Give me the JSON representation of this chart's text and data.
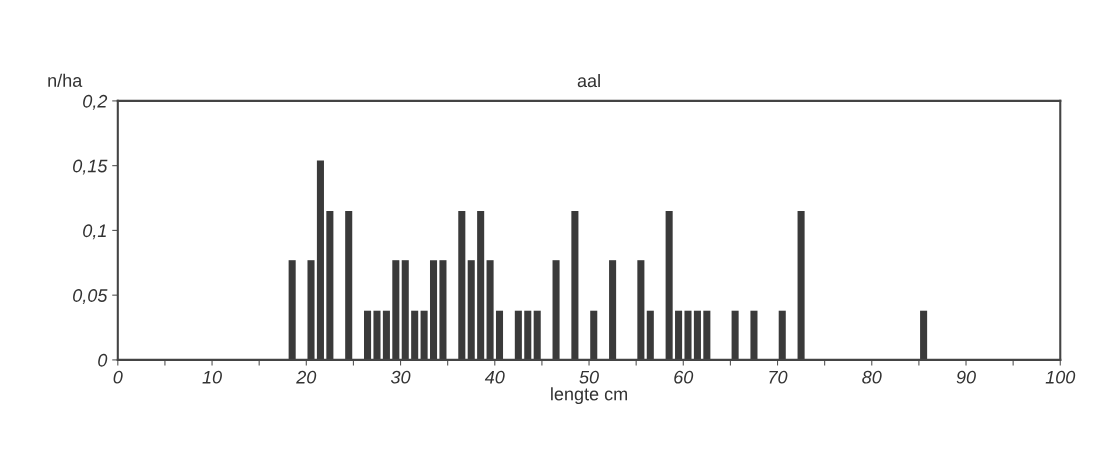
{
  "chart_data": {
    "type": "bar",
    "title": "aal",
    "xlabel": "lengte cm",
    "ylabel": "n/ha",
    "color": "#3a3a3a",
    "x": [
      18.5,
      20.5,
      21.5,
      22.5,
      24.5,
      26.5,
      27.5,
      28.5,
      29.5,
      30.5,
      31.5,
      32.5,
      33.5,
      34.5,
      36.5,
      37.5,
      38.5,
      39.5,
      40.5,
      42.5,
      43.5,
      44.5,
      46.5,
      48.5,
      50.5,
      52.5,
      55.5,
      56.5,
      58.5,
      59.5,
      60.5,
      61.5,
      62.5,
      65.5,
      67.5,
      70.5,
      72.5,
      85.5
    ],
    "values": [
      0.077,
      0.077,
      0.154,
      0.115,
      0.115,
      0.038,
      0.038,
      0.038,
      0.077,
      0.077,
      0.038,
      0.038,
      0.077,
      0.077,
      0.115,
      0.077,
      0.115,
      0.077,
      0.038,
      0.038,
      0.038,
      0.038,
      0.077,
      0.115,
      0.038,
      0.077,
      0.077,
      0.038,
      0.115,
      0.038,
      0.038,
      0.038,
      0.038,
      0.038,
      0.038,
      0.038,
      0.115,
      0.038
    ],
    "xlim": [
      0,
      100
    ],
    "ylim": [
      0,
      0.2
    ],
    "xticks": [
      0,
      {
        "value": 5,
        "label": null
      },
      10,
      {
        "value": 15,
        "label": null
      },
      20,
      {
        "value": 25,
        "label": null
      },
      30,
      {
        "value": 35,
        "label": null
      },
      40,
      {
        "value": 45,
        "label": null
      },
      50,
      {
        "value": 55,
        "label": null
      },
      60,
      {
        "value": 65,
        "label": null
      },
      70,
      {
        "value": 75,
        "label": null
      },
      80,
      {
        "value": 85,
        "label": null
      },
      90,
      {
        "value": 95,
        "label": null
      },
      100
    ],
    "yticks": [
      0,
      {
        "value": 0.05,
        "label": "0,05"
      },
      {
        "value": 0.1,
        "label": "0,1"
      },
      {
        "value": 0.15,
        "label": "0,15"
      },
      {
        "value": 0.2,
        "label": "0,2"
      }
    ],
    "grid": false,
    "legend": false
  }
}
